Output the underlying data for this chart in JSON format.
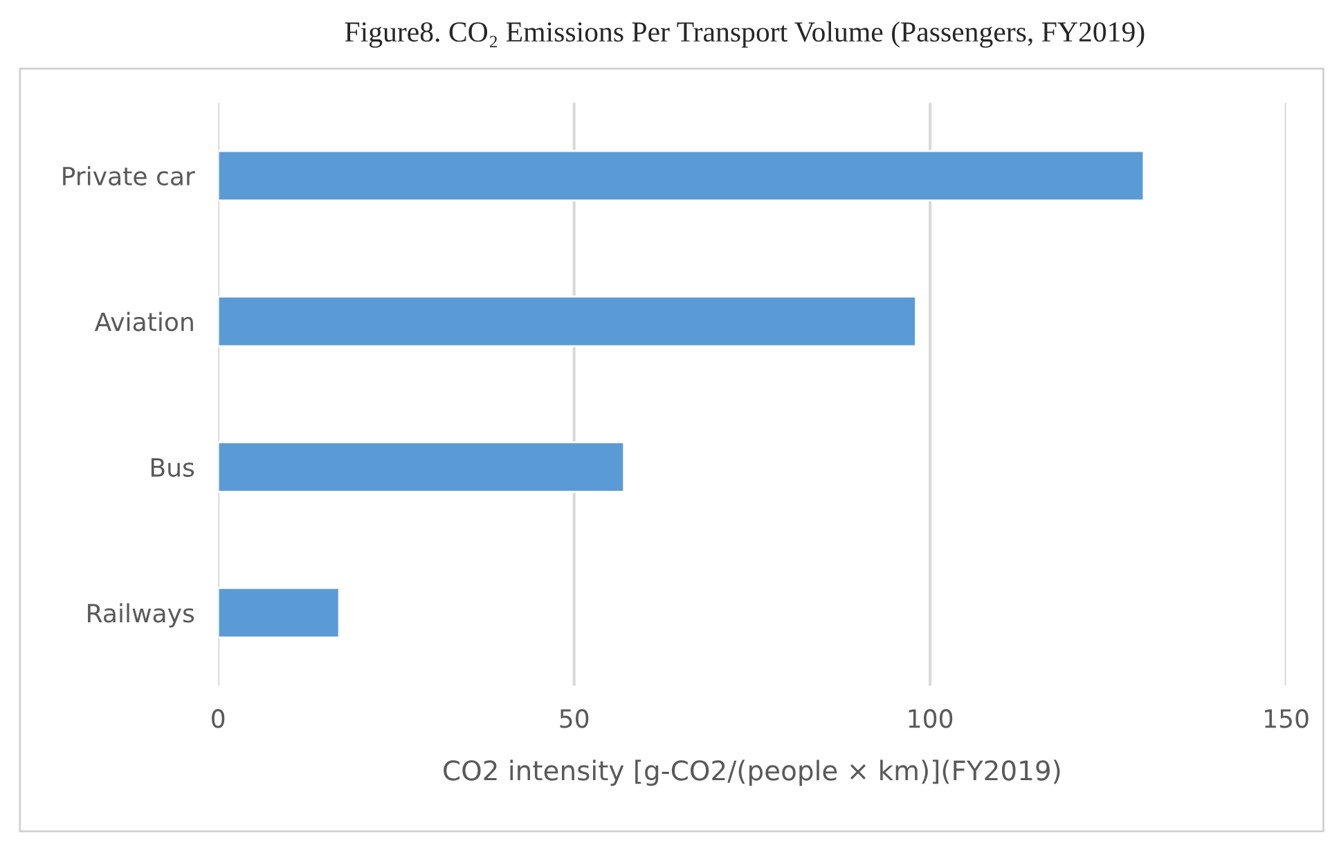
{
  "chart_data": {
    "type": "bar",
    "orientation": "horizontal",
    "title": "Figure8. CO₂ Emissions Per Transport Volume (Passengers, FY2019)",
    "xlabel": "CO2 intensity [g-CO2/(people × km)](FY2019)",
    "categories": [
      "Private car",
      "Aviation",
      "Bus",
      "Railways"
    ],
    "values": [
      130,
      98,
      57,
      17
    ],
    "color": "#5b9bd5",
    "xlim": [
      0,
      150
    ],
    "xticks": [
      0,
      50,
      100,
      150
    ],
    "grid": "x",
    "legend": false
  }
}
